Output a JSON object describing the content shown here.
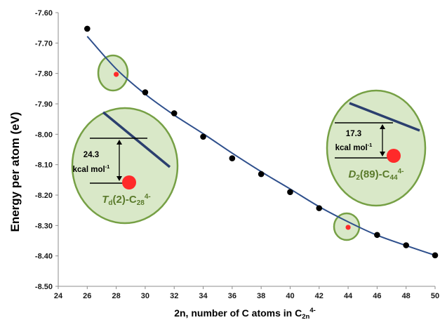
{
  "chart_data": {
    "type": "scatter",
    "xlabel": "2n, number of C atoms in C",
    "xlabel_sub": "2n",
    "xlabel_sup": "4-",
    "ylabel": "Energy per atom (eV)",
    "xlim": [
      24,
      50
    ],
    "ylim": [
      -8.5,
      -7.6
    ],
    "x_ticks": [
      "24",
      "26",
      "28",
      "30",
      "32",
      "34",
      "36",
      "38",
      "40",
      "42",
      "44",
      "46",
      "48",
      "50"
    ],
    "y_ticks": [
      "-7.60",
      "-7.70",
      "-7.80",
      "-7.90",
      "-8.00",
      "-8.10",
      "-8.20",
      "-8.30",
      "-8.40",
      "-8.50"
    ],
    "grid": false,
    "series": [
      {
        "marker": "circle",
        "color": "#000000",
        "x": [
          26,
          30,
          32,
          34,
          36,
          38,
          40,
          42,
          46,
          48,
          50
        ],
        "y": [
          -7.653,
          -7.862,
          -7.931,
          -8.008,
          -8.079,
          -8.131,
          -8.19,
          -8.243,
          -8.331,
          -8.365,
          -8.398
        ]
      },
      {
        "marker": "circle",
        "color": "#ff2a2a",
        "x": [
          28,
          44
        ],
        "y": [
          -7.803,
          -8.306
        ]
      }
    ],
    "fit_curve": {
      "color": "#2e4f8c",
      "x": [
        26,
        28,
        30,
        32,
        34,
        36,
        38,
        40,
        42,
        44,
        46,
        48,
        50
      ],
      "y": [
        -7.678,
        -7.785,
        -7.868,
        -7.937,
        -7.998,
        -8.062,
        -8.123,
        -8.18,
        -8.238,
        -8.288,
        -8.332,
        -8.366,
        -8.398
      ]
    },
    "annotations": [
      {
        "value": "24.3",
        "unit": "kcal mol",
        "unit_sup": "-1",
        "label_main": "T",
        "label_sub": "d",
        "label_mid": "(2)-C",
        "label_sub2": "28",
        "label_sup": "4-"
      },
      {
        "value": "17.3",
        "unit": "kcal mol",
        "unit_sup": "-1",
        "label_main": "D",
        "label_sub": "2",
        "label_mid": "(89)-C",
        "label_sub2": "44",
        "label_sup": "4-"
      }
    ],
    "colors": {
      "bubble_fill": "#d9e8c8",
      "bubble_stroke": "#76a045",
      "curve": "#2e4f8c",
      "point": "#000000",
      "highlight": "#ff2a2a",
      "label": "#5a7a2b"
    }
  }
}
